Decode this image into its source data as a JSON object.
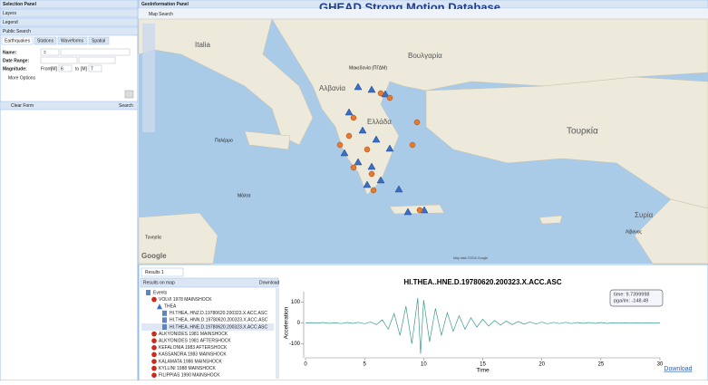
{
  "left_panel": {
    "title": "Selection Panel",
    "sections": [
      "Layers",
      "Legend",
      "Public Search"
    ],
    "tabs": [
      "Earthquakes",
      "Stations",
      "Waveforms",
      "Spatial"
    ],
    "name_label": "Name:",
    "name_op": "=",
    "date_label": "Date Range:",
    "mag_label": "Magnitude:",
    "from_label": "From",
    "from_unit": "[M]",
    "from_value": "6",
    "to_label": "to",
    "to_unit": "[M]",
    "to_value": "7",
    "more_options": "More Options",
    "clear_form": "Clear Form",
    "search": "Search"
  },
  "top": {
    "panel_title": "GeoInformation Panel",
    "map_search": "Map Search",
    "title": "GHEAD  Strong Motion Database"
  },
  "map": {
    "labels": [
      "Italia",
      "Βουλγαρία",
      "Μακεδονία (ΠΓΔΜ)",
      "Αλβανία",
      "Ελλάδα",
      "Τουρκία",
      "Παλέρμο",
      "Μάλτα",
      "Τυνησία",
      "Συρία",
      "Λίβανος"
    ],
    "google": "Google",
    "attribution": "Map data ©2016 Google"
  },
  "bottom": {
    "results_tab": "Results 1",
    "results_on_map": "Results on map",
    "download_button": "Download",
    "tree": {
      "root": "Events",
      "event": "VOLVI 1978 MAINSHOCK",
      "station": "THEA",
      "files": [
        "HI.THEA..HNZ.D.19780620.200323.X.ACC.ASC",
        "HI.THEA..HNN.D.19780620.200323.X.ACC.ASC",
        "HI.THEA..HNE.D.19780620.200323.X.ACC.ASC"
      ],
      "events": [
        "ALKYONIDES 1981 MAINSHOCK",
        "ALKYONIDES 1981 AFTERSHOCK",
        "KEFALONIA 1983 AFTERSHOCK",
        "KASSANDRA 1983 MAINSHOCK",
        "KALAMATA 1986 MAINSHOCK",
        "KYLLINI 1988 MAINSHOCK",
        "FILIPPIAS 1990 MAINSHOCK"
      ]
    },
    "download_link": "Download"
  },
  "chart_data": {
    "type": "line",
    "title": "HI.THEA..HNE.D.19780620.200323.X.ACC.ASC",
    "x_label": "Time",
    "y_label": "Acceleration",
    "xlim": [
      0,
      30
    ],
    "ylim": [
      -150,
      150
    ],
    "xticks": [
      0,
      5,
      10,
      15,
      20,
      25,
      30
    ],
    "yticks": [
      -100,
      0,
      100
    ],
    "tooltip": [
      "time: 9.7399998",
      "pga/im: -148.49"
    ],
    "series": [
      {
        "color": "#3a9a8c",
        "x": [
          0,
          0.5,
          1,
          1.5,
          2,
          2.5,
          3,
          3.5,
          4,
          4.5,
          5,
          5.5,
          6,
          6.5,
          7,
          7.5,
          8,
          8.5,
          9,
          9.5,
          9.74,
          10,
          10.5,
          11,
          11.5,
          12,
          12.5,
          13,
          13.5,
          14,
          14.5,
          15,
          15.5,
          16,
          16.5,
          17,
          17.5,
          18,
          18.5,
          19,
          19.5,
          20,
          20.5,
          21,
          21.5,
          22,
          22.5,
          23,
          23.5,
          24,
          24.5,
          25,
          25.5,
          26,
          26.5,
          27,
          27.5,
          28,
          28.5,
          29,
          29.5,
          30
        ],
        "values": [
          0,
          1,
          -1,
          2,
          -2,
          1,
          -3,
          2,
          -2,
          3,
          -4,
          5,
          -8,
          15,
          -30,
          45,
          -60,
          80,
          -100,
          120,
          -148.49,
          110,
          -90,
          70,
          -60,
          50,
          -40,
          35,
          -30,
          25,
          -20,
          18,
          -15,
          12,
          -10,
          9,
          -8,
          7,
          -6,
          5,
          -5,
          4,
          -4,
          3,
          -3,
          3,
          -3,
          2,
          -2,
          2,
          -2,
          2,
          -2,
          1,
          -1,
          1,
          -1,
          1,
          -1,
          1,
          -1,
          0
        ]
      }
    ]
  }
}
